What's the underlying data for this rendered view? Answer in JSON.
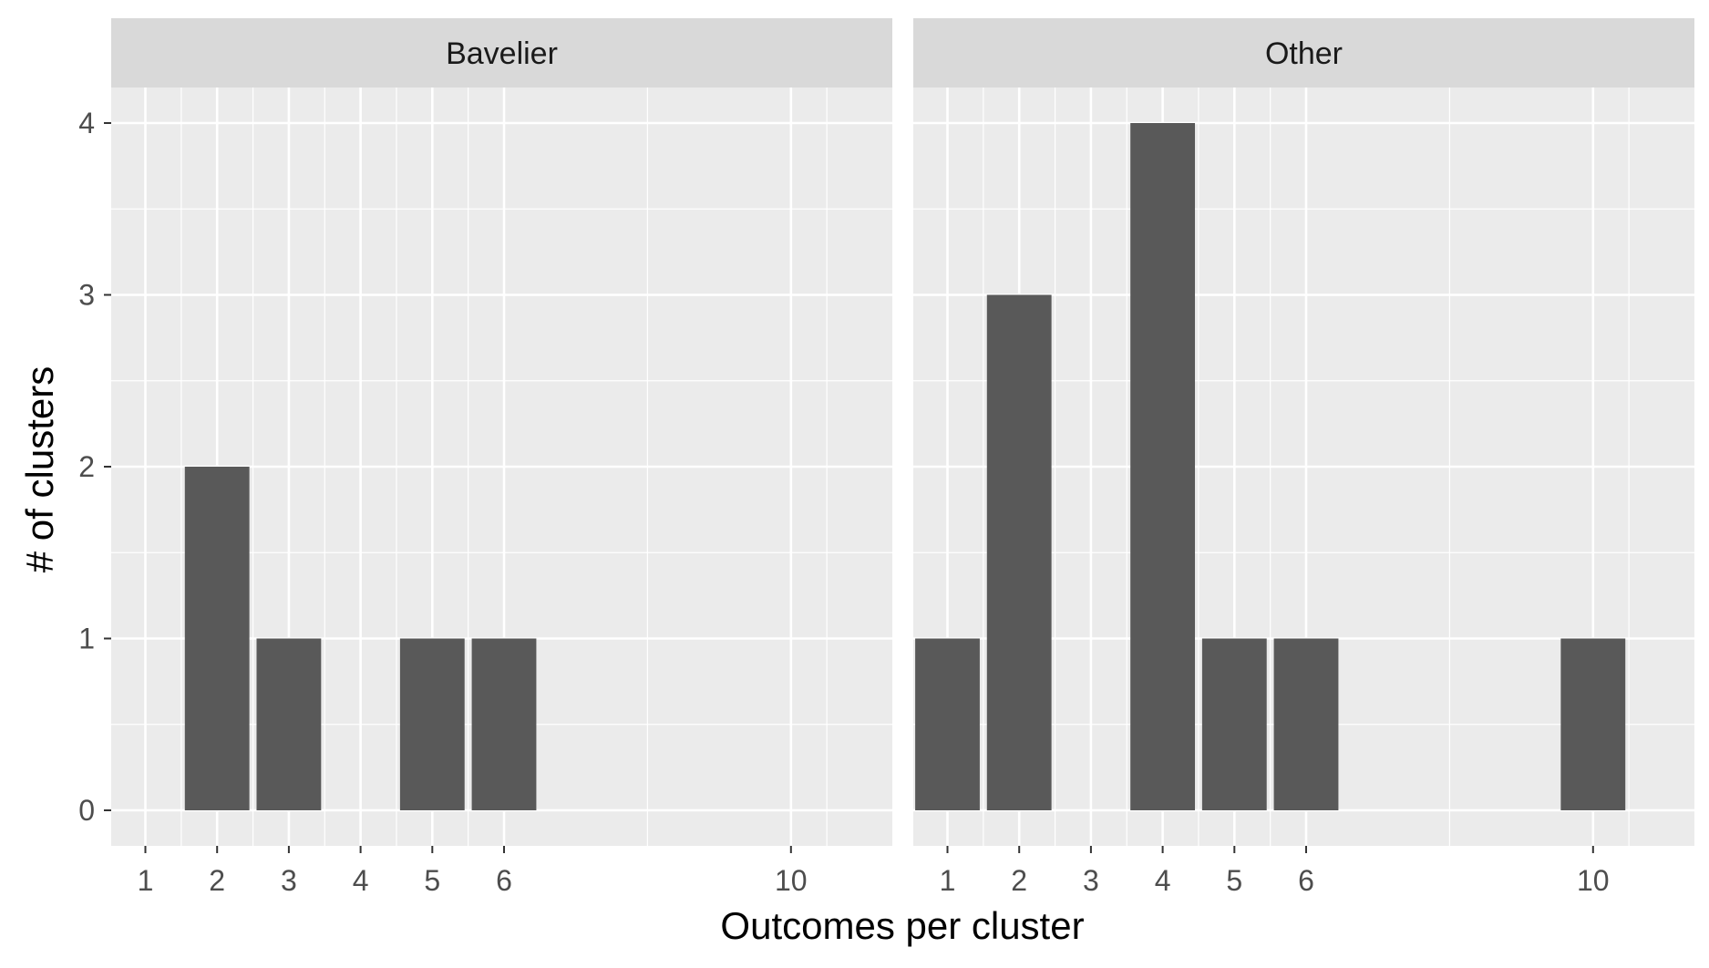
{
  "chart_data": {
    "type": "bar",
    "xlabel": "Outcomes per cluster",
    "ylabel": "# of clusters",
    "ylim": [
      0,
      4
    ],
    "xlim": [
      0.5,
      10.5
    ],
    "y_ticks": [
      "0",
      "1",
      "2",
      "3",
      "4"
    ],
    "grid": true,
    "colors": {
      "panel_bg": "#ebebeb",
      "strip_bg": "#d9d9d9",
      "grid": "#ffffff",
      "bar": "#595959"
    },
    "panels": [
      {
        "strip": "Bavelier",
        "x_ticks": [
          "1",
          "2",
          "3",
          "4",
          "5",
          "6",
          "10"
        ],
        "x_tick_values": [
          1,
          2,
          3,
          4,
          5,
          6,
          10
        ],
        "x": [
          2,
          3,
          5,
          6
        ],
        "values": [
          2,
          1,
          1,
          1
        ]
      },
      {
        "strip": "Other",
        "x_ticks": [
          "1",
          "2",
          "3",
          "4",
          "5",
          "6",
          "10"
        ],
        "x_tick_values": [
          1,
          2,
          3,
          4,
          5,
          6,
          10
        ],
        "x": [
          1,
          2,
          4,
          5,
          6,
          10
        ],
        "values": [
          1,
          3,
          4,
          1,
          1,
          1
        ]
      }
    ]
  }
}
